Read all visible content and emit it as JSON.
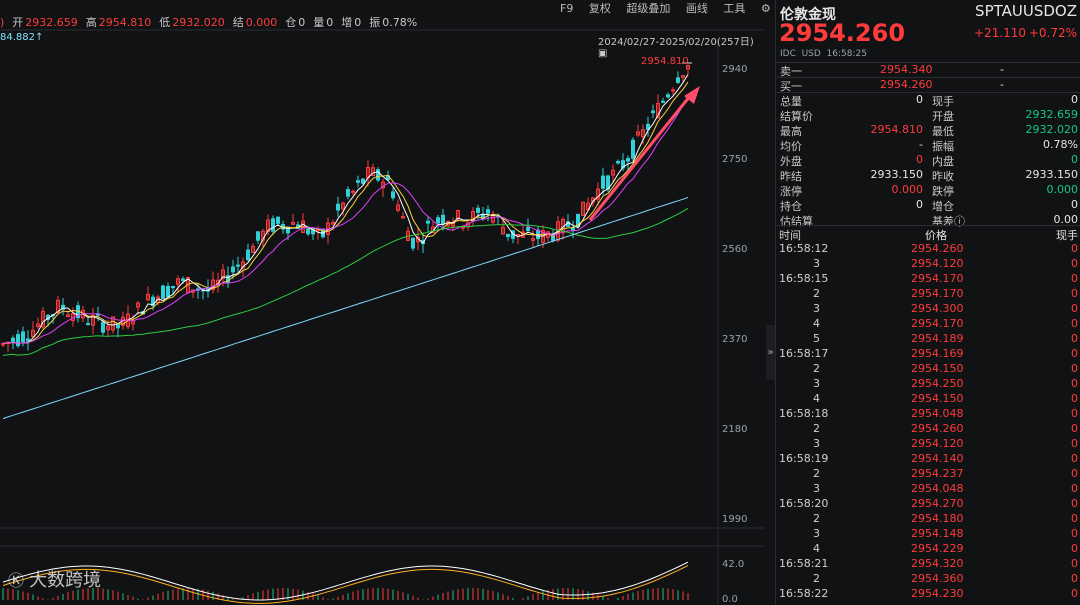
{
  "info_bar": {
    "prefix": ")",
    "open_label": "开",
    "open": "2932.659",
    "high_label": "高",
    "high": "2954.810",
    "low_label": "低",
    "low": "2932.020",
    "settle_label": "结",
    "settle": "0.000",
    "pos_label": "仓",
    "pos": "0",
    "vol_label": "量",
    "vol": "0",
    "inc_label": "增",
    "inc": "0",
    "amp_label": "振",
    "amp": "0.78%"
  },
  "top_left_value": "84.882↑",
  "toolbar": {
    "f9": "F9",
    "fq": "复权",
    "overlay": "超级叠加",
    "draw": "画线",
    "tools": "工具"
  },
  "range": "2024/02/27-2025/02/20(257日)",
  "max_label": "2954.810",
  "price_axis": [
    "2940",
    "2750",
    "2560",
    "2370",
    "2180",
    "1990"
  ],
  "sub_axis": [
    "42.0",
    "0.0"
  ],
  "watermark": "大数跨境",
  "panel": {
    "name": "伦敦金现",
    "code": "SPTAUUSDOZ",
    "price": "2954.260",
    "change": "+21.110",
    "change_pct": "+0.72%",
    "meta": "IDC  USD  16:58:25",
    "sell_label": "卖一",
    "sell_price": "2954.340",
    "sell_vol": "-",
    "buy_label": "买一",
    "buy_price": "2954.260",
    "buy_vol": "-",
    "stats": [
      {
        "k": "总量",
        "v": "0",
        "vc": "white",
        "k2": "现手",
        "v2": "0",
        "v2c": "white"
      },
      {
        "k": "结算价",
        "v": "",
        "vc": "white",
        "k2": "开盘",
        "v2": "2932.659",
        "v2c": "green"
      },
      {
        "k": "最高",
        "v": "2954.810",
        "vc": "red",
        "k2": "最低",
        "v2": "2932.020",
        "v2c": "green"
      },
      {
        "k": "均价",
        "v": "-",
        "vc": "white",
        "k2": "振幅",
        "v2": "0.78%",
        "v2c": "white"
      },
      {
        "k": "外盘",
        "v": "0",
        "vc": "red",
        "k2": "内盘",
        "v2": "0",
        "v2c": "green"
      },
      {
        "k": "昨结",
        "v": "2933.150",
        "vc": "white",
        "k2": "昨收",
        "v2": "2933.150",
        "v2c": "white"
      },
      {
        "k": "涨停",
        "v": "0.000",
        "vc": "red",
        "k2": "跌停",
        "v2": "0.000",
        "v2c": "green"
      },
      {
        "k": "持仓",
        "v": "0",
        "vc": "white",
        "k2": "增仓",
        "v2": "0",
        "v2c": "white"
      },
      {
        "k": "估结算",
        "v": "",
        "vc": "white",
        "k2": "基差ⓘ",
        "v2": "0.00",
        "v2c": "white"
      }
    ],
    "ticks_header": {
      "time": "时间",
      "price": "价格",
      "vol": "现手"
    },
    "ticks": [
      {
        "t": "16:58:12",
        "p": "2954.260",
        "q": "0"
      },
      {
        "t": "3",
        "p": "2954.120",
        "q": "0"
      },
      {
        "t": "16:58:15",
        "p": "2954.170",
        "q": "0"
      },
      {
        "t": "2",
        "p": "2954.170",
        "q": "0"
      },
      {
        "t": "3",
        "p": "2954.300",
        "q": "0"
      },
      {
        "t": "4",
        "p": "2954.170",
        "q": "0"
      },
      {
        "t": "5",
        "p": "2954.189",
        "q": "0"
      },
      {
        "t": "16:58:17",
        "p": "2954.169",
        "q": "0"
      },
      {
        "t": "2",
        "p": "2954.150",
        "q": "0"
      },
      {
        "t": "3",
        "p": "2954.250",
        "q": "0"
      },
      {
        "t": "4",
        "p": "2954.150",
        "q": "0"
      },
      {
        "t": "16:58:18",
        "p": "2954.048",
        "q": "0"
      },
      {
        "t": "2",
        "p": "2954.260",
        "q": "0"
      },
      {
        "t": "3",
        "p": "2954.120",
        "q": "0"
      },
      {
        "t": "16:58:19",
        "p": "2954.140",
        "q": "0"
      },
      {
        "t": "2",
        "p": "2954.237",
        "q": "0"
      },
      {
        "t": "3",
        "p": "2954.048",
        "q": "0"
      },
      {
        "t": "16:58:20",
        "p": "2954.270",
        "q": "0"
      },
      {
        "t": "2",
        "p": "2954.180",
        "q": "0"
      },
      {
        "t": "3",
        "p": "2954.148",
        "q": "0"
      },
      {
        "t": "4",
        "p": "2954.229",
        "q": "0"
      },
      {
        "t": "16:58:21",
        "p": "2954.320",
        "q": "0"
      },
      {
        "t": "2",
        "p": "2954.360",
        "q": "0"
      },
      {
        "t": "16:58:22",
        "p": "2954.230",
        "q": "0"
      }
    ]
  }
}
